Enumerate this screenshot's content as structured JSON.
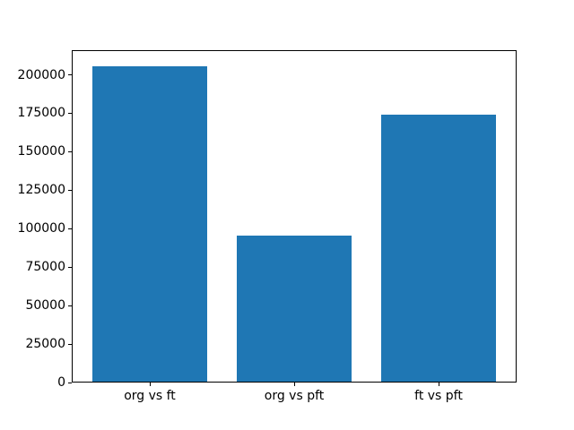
{
  "figure": {
    "background": "#ffffff",
    "spine_color": "#000000",
    "text_color": "#000000"
  },
  "chart_data": {
    "type": "bar",
    "title": "",
    "xlabel": "",
    "ylabel": "",
    "categories": [
      "org vs ft",
      "org vs pft",
      "ft vs pft"
    ],
    "values": [
      205000,
      95000,
      173500
    ],
    "bar_color": "#1f77b4",
    "bar_width_fraction": 0.8,
    "ylim": [
      0,
      216000
    ],
    "yticks": [
      0,
      25000,
      50000,
      75000,
      100000,
      125000,
      150000,
      175000,
      200000
    ],
    "grid": false,
    "legend": "none"
  }
}
